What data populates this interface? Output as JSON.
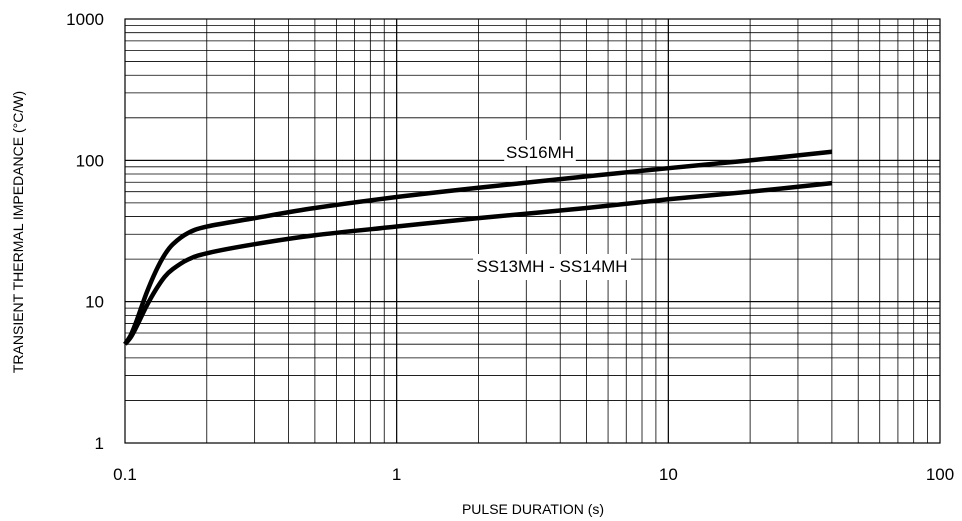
{
  "chart_data": {
    "type": "line",
    "xlabel": "PULSE DURATION (s)",
    "ylabel": "TRANSIENT THERMAL IMPEDANCE (°C/W)",
    "x_scale": "log",
    "y_scale": "log",
    "xlim": [
      0.1,
      100
    ],
    "ylim": [
      1,
      1000
    ],
    "grid": true,
    "x_ticks": [
      {
        "value": 0.1,
        "label": "0.1"
      },
      {
        "value": 1,
        "label": "1"
      },
      {
        "value": 10,
        "label": "10"
      },
      {
        "value": 100,
        "label": "100"
      }
    ],
    "y_ticks": [
      {
        "value": 1,
        "label": "1"
      },
      {
        "value": 10,
        "label": "10"
      },
      {
        "value": 100,
        "label": "100"
      },
      {
        "value": 1000,
        "label": "1000"
      }
    ],
    "series": [
      {
        "name": "SS16MH",
        "x": [
          0.1,
          0.105,
          0.11,
          0.12,
          0.13,
          0.14,
          0.15,
          0.17,
          0.2,
          0.3,
          0.5,
          1,
          2,
          5,
          10,
          20,
          40
        ],
        "y": [
          5.0,
          5.8,
          7.2,
          11.5,
          16.5,
          21.5,
          25.5,
          30.5,
          34.0,
          39.0,
          46.0,
          55.0,
          64.0,
          77.0,
          88.0,
          100.0,
          115.0
        ]
      },
      {
        "name": "SS13MH - SS14MH",
        "x": [
          0.1,
          0.105,
          0.11,
          0.12,
          0.13,
          0.14,
          0.15,
          0.17,
          0.2,
          0.3,
          0.5,
          1,
          2,
          5,
          10,
          20,
          40
        ],
        "y": [
          5.0,
          5.6,
          6.6,
          9.3,
          12.2,
          15.0,
          17.0,
          19.8,
          22.0,
          25.5,
          29.5,
          34.0,
          39.0,
          46.0,
          53.0,
          60.0,
          69.0
        ]
      }
    ]
  }
}
